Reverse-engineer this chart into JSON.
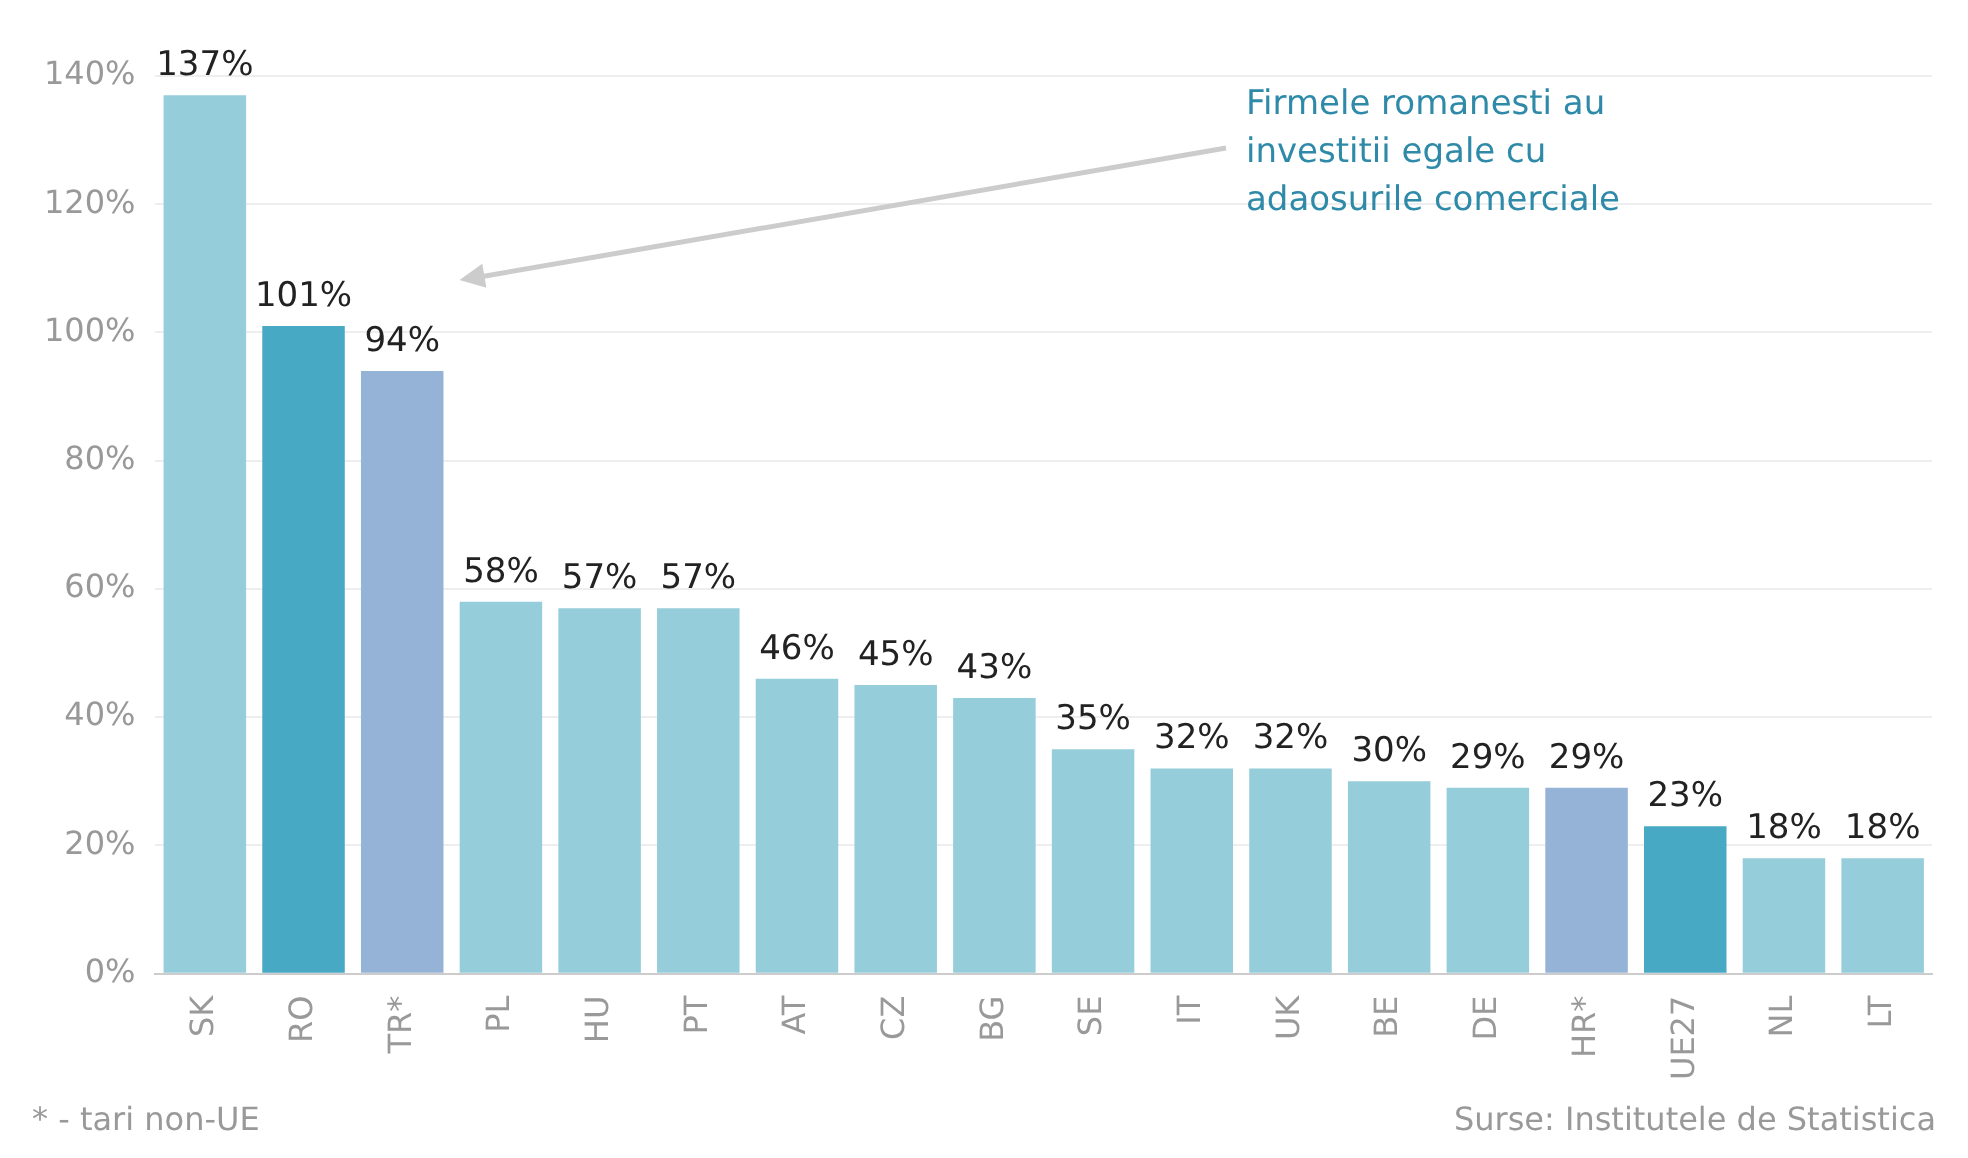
{
  "chart_data": {
    "type": "bar",
    "categories": [
      "SK",
      "RO",
      "TR*",
      "PL",
      "HU",
      "PT",
      "AT",
      "CZ",
      "BG",
      "SE",
      "IT",
      "UK",
      "BE",
      "DE",
      "HR*",
      "UE27",
      "NL",
      "LT"
    ],
    "values": [
      137,
      101,
      94,
      58,
      57,
      57,
      46,
      45,
      43,
      35,
      32,
      32,
      30,
      29,
      29,
      23,
      18,
      18
    ],
    "colors": [
      "#96cddb",
      "#48a9c5",
      "#95b3d7",
      "#96cddb",
      "#96cddb",
      "#96cddb",
      "#96cddb",
      "#96cddb",
      "#96cddb",
      "#96cddb",
      "#96cddb",
      "#96cddb",
      "#96cddb",
      "#96cddb",
      "#95b3d7",
      "#48a9c5",
      "#96cddb",
      "#96cddb"
    ],
    "value_labels": [
      "137%",
      "101%",
      "94%",
      "58%",
      "57%",
      "57%",
      "46%",
      "45%",
      "43%",
      "35%",
      "32%",
      "32%",
      "30%",
      "29%",
      "29%",
      "23%",
      "18%",
      "18%"
    ],
    "ylim": [
      0,
      140
    ],
    "yticks": [
      {
        "value": 0,
        "label": "0%"
      },
      {
        "value": 20,
        "label": "20%"
      },
      {
        "value": 40,
        "label": "40%"
      },
      {
        "value": 60,
        "label": "60%"
      },
      {
        "value": 80,
        "label": "80%"
      },
      {
        "value": 100,
        "label": "100%"
      },
      {
        "value": 120,
        "label": "120%"
      },
      {
        "value": 140,
        "label": "140%"
      }
    ],
    "grid": "y",
    "legend": false,
    "annotations": [
      "Firmele romanesti au investitii egale cu adaosurile comerciale",
      "* - tari non-UE",
      "Surse: Institutele de Statistica"
    ]
  }
}
